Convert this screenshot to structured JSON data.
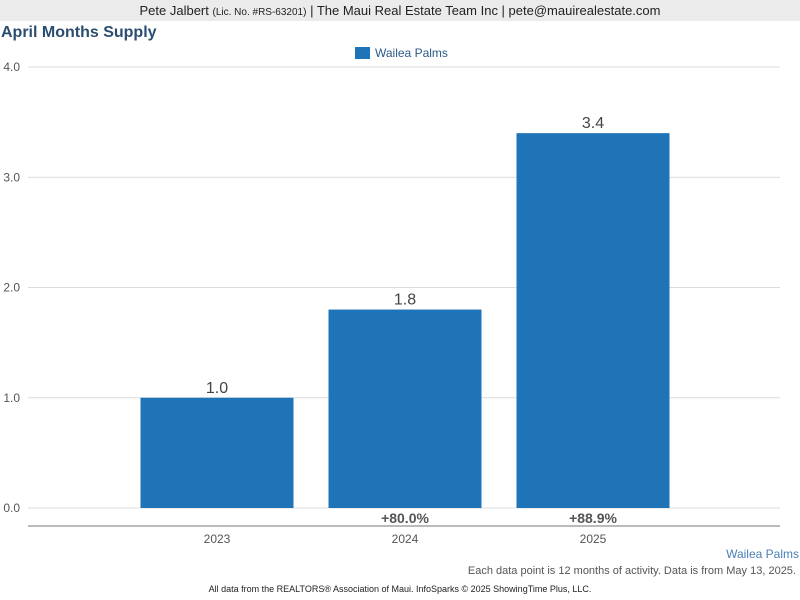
{
  "header": {
    "name": "Pete Jalbert",
    "license": "(Lic. No. #RS-63201)",
    "rest": "| The Maui Real Estate Team Inc | pete@mauirealestate.com"
  },
  "chart_data": {
    "type": "bar",
    "title": "April Months Supply",
    "categories": [
      "2023",
      "2024",
      "2025"
    ],
    "series": [
      {
        "name": "Wailea Palms",
        "values": [
          1.0,
          1.8,
          3.4
        ],
        "color": "#1f73b7"
      }
    ],
    "value_labels": [
      "1.0",
      "1.8",
      "3.4"
    ],
    "change_labels": [
      "",
      "+80.0%",
      "+88.9%"
    ],
    "ylim": [
      0,
      4
    ],
    "yticks": [
      "0.0",
      "1.0",
      "2.0",
      "3.0",
      "4.0"
    ],
    "xlabel": "",
    "ylabel": "",
    "grid": true,
    "legend": "top-center"
  },
  "series_label": "Wailea Palms",
  "note": "Each data point is 12 months of activity. Data is from May 13, 2025.",
  "footer": "All data from the REALTORS® Association of Maui. InfoSparks © 2025 ShowingTime Plus, LLC."
}
